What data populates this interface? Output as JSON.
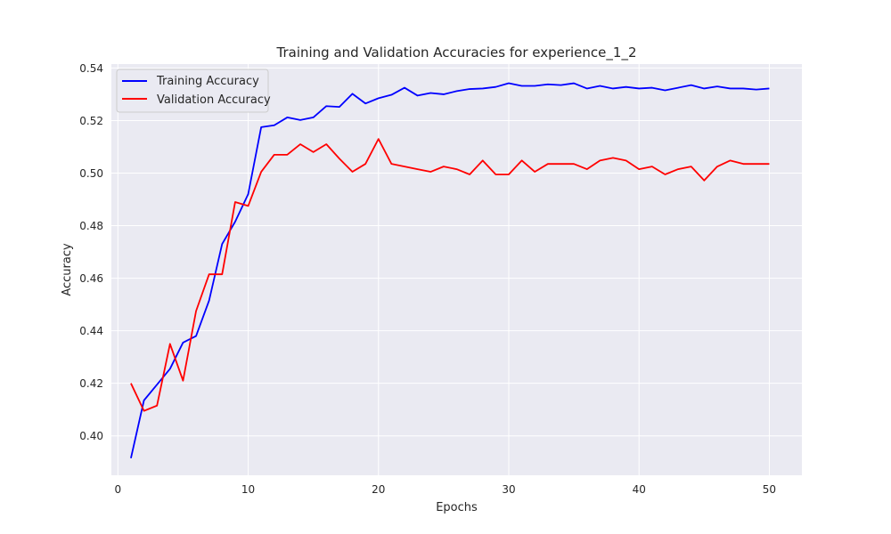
{
  "chart_data": {
    "type": "line",
    "title": "Training and Validation Accuracies for experience_1_2",
    "xlabel": "Epochs",
    "ylabel": "Accuracy",
    "xlim": [
      -0.5,
      52.5
    ],
    "ylim": [
      0.385,
      0.5415
    ],
    "x_ticks": [
      0,
      10,
      20,
      30,
      40,
      50
    ],
    "y_ticks": [
      0.4,
      0.42,
      0.44,
      0.46,
      0.48,
      0.5,
      0.52,
      0.54
    ],
    "y_tick_labels": [
      "0.40",
      "0.42",
      "0.44",
      "0.46",
      "0.48",
      "0.50",
      "0.52",
      "0.54"
    ],
    "grid": true,
    "legend_position": "top-left",
    "x": [
      1,
      2,
      3,
      4,
      5,
      6,
      7,
      8,
      9,
      10,
      11,
      12,
      13,
      14,
      15,
      16,
      17,
      18,
      19,
      20,
      21,
      22,
      23,
      24,
      25,
      26,
      27,
      28,
      29,
      30,
      31,
      32,
      33,
      34,
      35,
      36,
      37,
      38,
      39,
      40,
      41,
      42,
      43,
      44,
      45,
      46,
      47,
      48,
      49,
      50
    ],
    "series": [
      {
        "name": "Training Accuracy",
        "color": "#0000ff",
        "values": [
          0.3915,
          0.4135,
          0.4195,
          0.4255,
          0.4355,
          0.438,
          0.4515,
          0.473,
          0.4815,
          0.492,
          0.5175,
          0.5182,
          0.5212,
          0.5202,
          0.5212,
          0.5255,
          0.5252,
          0.5302,
          0.5265,
          0.5285,
          0.5298,
          0.5325,
          0.5295,
          0.5305,
          0.53,
          0.5312,
          0.532,
          0.5322,
          0.5328,
          0.5342,
          0.5332,
          0.5332,
          0.5338,
          0.5335,
          0.5342,
          0.5322,
          0.5332,
          0.5322,
          0.5328,
          0.5322,
          0.5325,
          0.5315,
          0.5325,
          0.5335,
          0.5322,
          0.533,
          0.5322,
          0.5322,
          0.5318,
          0.5322
        ]
      },
      {
        "name": "Validation Accuracy",
        "color": "#ff0000",
        "values": [
          0.42,
          0.4095,
          0.4115,
          0.435,
          0.421,
          0.4475,
          0.4615,
          0.4615,
          0.489,
          0.4875,
          0.5005,
          0.507,
          0.507,
          0.511,
          0.508,
          0.511,
          0.5055,
          0.5005,
          0.5035,
          0.513,
          0.5035,
          0.5025,
          0.5015,
          0.5005,
          0.5025,
          0.5015,
          0.4995,
          0.5048,
          0.4995,
          0.4995,
          0.5048,
          0.5005,
          0.5035,
          0.5035,
          0.5035,
          0.5015,
          0.5048,
          0.5058,
          0.5048,
          0.5015,
          0.5025,
          0.4995,
          0.5015,
          0.5025,
          0.4972,
          0.5025,
          0.5048,
          0.5035,
          0.5035,
          0.5035
        ]
      }
    ]
  }
}
